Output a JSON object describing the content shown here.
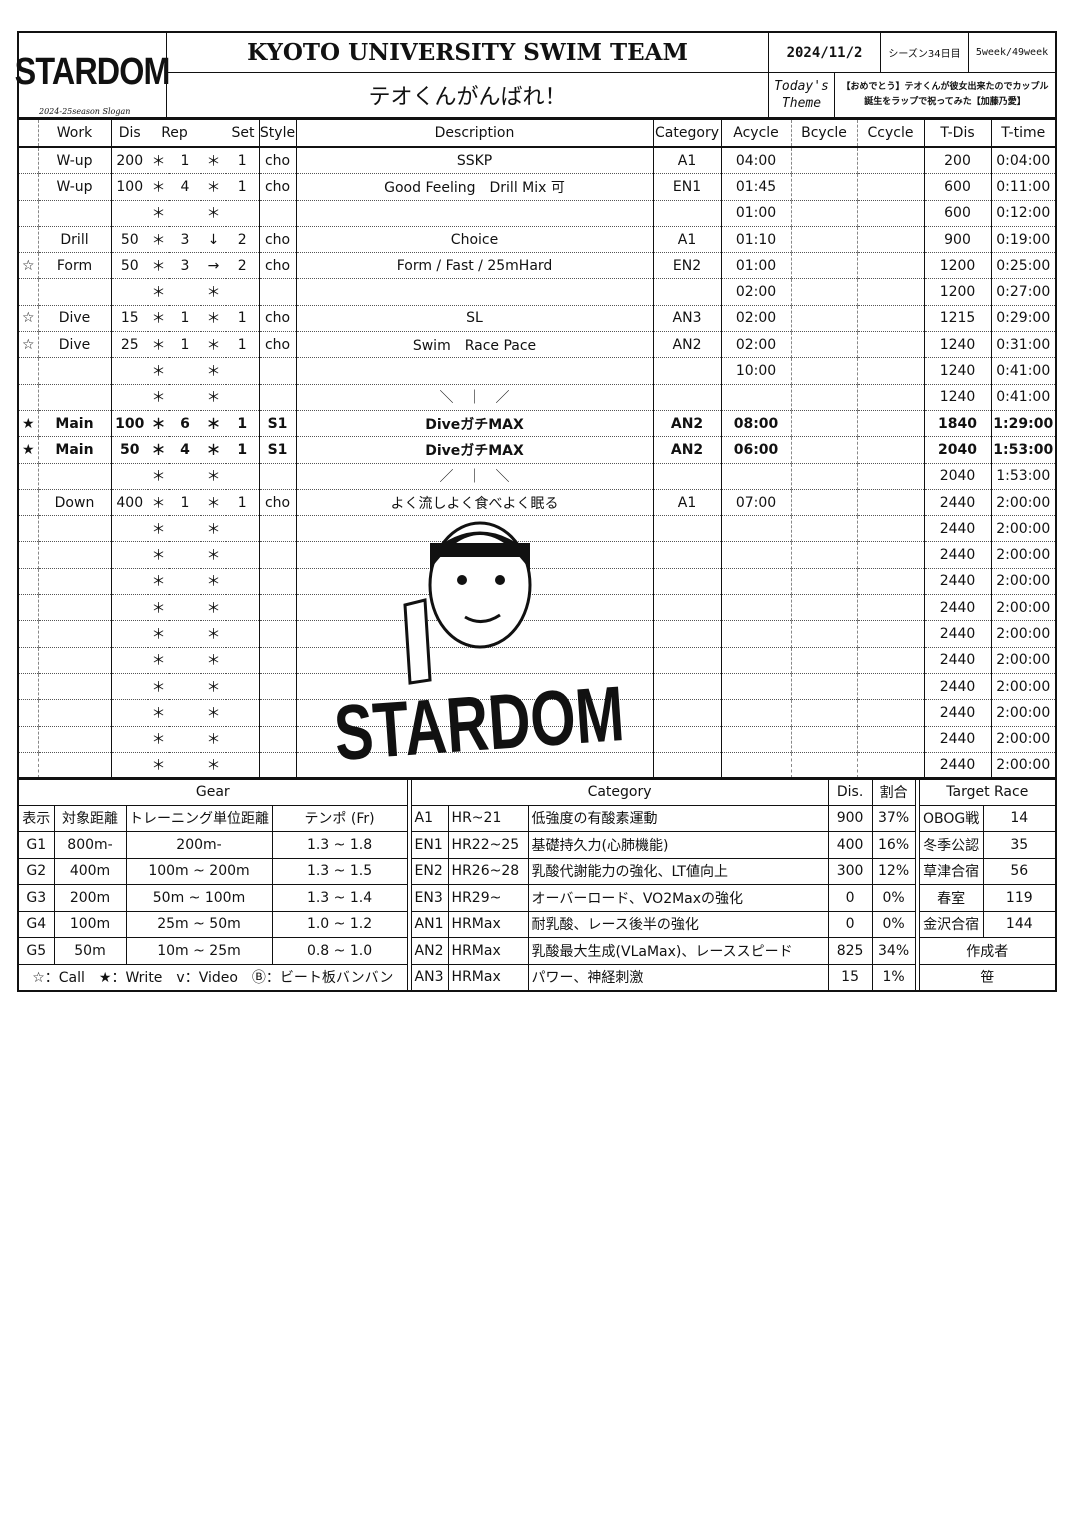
{
  "header": {
    "logo": "STARDOM",
    "slogan_label": "2024-25season Slogan",
    "team": "KYOTO UNIVERSITY SWIM TEAM",
    "date": "2024/11/2",
    "season_day": "シーズン34日目",
    "week": "5week/49week",
    "slogan": "テオくんがんばれ！",
    "theme_label": "Today's Theme",
    "theme": "【おめでとう】テオくんが彼女出来たのでカップル誕生をラップで祝ってみた【加藤乃愛】"
  },
  "columns": [
    "Work",
    "Dis",
    "Rep",
    "Set",
    "Style",
    "Description",
    "Category",
    "Acycle",
    "Bcycle",
    "Ccycle",
    "T-Dis",
    "T-time"
  ],
  "rows": [
    [
      "",
      "W-up",
      "200",
      "＊",
      "1",
      "＊",
      "1",
      "cho",
      "SSKP",
      "A1",
      "04:00",
      "",
      "",
      "200",
      "0:04:00",
      0
    ],
    [
      "",
      "W-up",
      "100",
      "＊",
      "4",
      "＊",
      "1",
      "cho",
      "Good Feeling　Drill Mix 可",
      "EN1",
      "01:45",
      "",
      "",
      "600",
      "0:11:00",
      0
    ],
    [
      "",
      "",
      "",
      "＊",
      "",
      "＊",
      "",
      "",
      "",
      "",
      "01:00",
      "",
      "",
      "600",
      "0:12:00",
      0
    ],
    [
      "",
      "Drill",
      "50",
      "＊",
      "3",
      "↓",
      "2",
      "cho",
      "Choice",
      "A1",
      "01:10",
      "",
      "",
      "900",
      "0:19:00",
      0
    ],
    [
      "☆",
      "Form",
      "50",
      "＊",
      "3",
      "→",
      "2",
      "cho",
      "Form / Fast / 25mHard",
      "EN2",
      "01:00",
      "",
      "",
      "1200",
      "0:25:00",
      0
    ],
    [
      "",
      "",
      "",
      "＊",
      "",
      "＊",
      "",
      "",
      "",
      "",
      "02:00",
      "",
      "",
      "1200",
      "0:27:00",
      0
    ],
    [
      "☆",
      "Dive",
      "15",
      "＊",
      "1",
      "＊",
      "1",
      "cho",
      "SL",
      "AN3",
      "02:00",
      "",
      "",
      "1215",
      "0:29:00",
      0
    ],
    [
      "☆",
      "Dive",
      "25",
      "＊",
      "1",
      "＊",
      "1",
      "cho",
      "Swim　Race Pace",
      "AN2",
      "02:00",
      "",
      "",
      "1240",
      "0:31:00",
      0
    ],
    [
      "",
      "",
      "",
      "＊",
      "",
      "＊",
      "",
      "",
      "",
      "",
      "10:00",
      "",
      "",
      "1240",
      "0:41:00",
      0
    ],
    [
      "",
      "",
      "",
      "＊",
      "",
      "＊",
      "",
      "",
      "＼　｜　／",
      "",
      "",
      "",
      "",
      "1240",
      "0:41:00",
      0
    ],
    [
      "★",
      "Main",
      "100",
      "＊",
      "6",
      "＊",
      "1",
      "S1",
      "DiveガチMAX",
      "AN2",
      "08:00",
      "",
      "",
      "1840",
      "1:29:00",
      1
    ],
    [
      "★",
      "Main",
      "50",
      "＊",
      "4",
      "＊",
      "1",
      "S1",
      "DiveガチMAX",
      "AN2",
      "06:00",
      "",
      "",
      "2040",
      "1:53:00",
      1
    ],
    [
      "",
      "",
      "",
      "＊",
      "",
      "＊",
      "",
      "",
      "／　｜　＼",
      "",
      "",
      "",
      "",
      "2040",
      "1:53:00",
      0
    ],
    [
      "",
      "Down",
      "400",
      "＊",
      "1",
      "＊",
      "1",
      "cho",
      "よく流しよく食べよく眠る",
      "A1",
      "07:00",
      "",
      "",
      "2440",
      "2:00:00",
      0
    ],
    [
      "",
      "",
      "",
      "＊",
      "",
      "＊",
      "",
      "",
      "",
      "",
      "",
      "",
      "",
      "2440",
      "2:00:00",
      0
    ],
    [
      "",
      "",
      "",
      "＊",
      "",
      "＊",
      "",
      "",
      "",
      "",
      "",
      "",
      "",
      "2440",
      "2:00:00",
      0
    ],
    [
      "",
      "",
      "",
      "＊",
      "",
      "＊",
      "",
      "",
      "",
      "",
      "",
      "",
      "",
      "2440",
      "2:00:00",
      0
    ],
    [
      "",
      "",
      "",
      "＊",
      "",
      "＊",
      "",
      "",
      "",
      "",
      "",
      "",
      "",
      "2440",
      "2:00:00",
      0
    ],
    [
      "",
      "",
      "",
      "＊",
      "",
      "＊",
      "",
      "",
      "",
      "",
      "",
      "",
      "",
      "2440",
      "2:00:00",
      0
    ],
    [
      "",
      "",
      "",
      "＊",
      "",
      "＊",
      "",
      "",
      "",
      "",
      "",
      "",
      "",
      "2440",
      "2:00:00",
      0
    ],
    [
      "",
      "",
      "",
      "＊",
      "",
      "＊",
      "",
      "",
      "",
      "",
      "",
      "",
      "",
      "2440",
      "2:00:00",
      0
    ],
    [
      "",
      "",
      "",
      "＊",
      "",
      "＊",
      "",
      "",
      "",
      "",
      "",
      "",
      "",
      "2440",
      "2:00:00",
      0
    ],
    [
      "",
      "",
      "",
      "＊",
      "",
      "＊",
      "",
      "",
      "",
      "",
      "",
      "",
      "",
      "2440",
      "2:00:00",
      0
    ],
    [
      "",
      "",
      "",
      "＊",
      "",
      "＊",
      "",
      "",
      "",
      "",
      "",
      "",
      "",
      "2440",
      "2:00:00",
      0
    ]
  ],
  "photo": {
    "caption_logo": "STARDOM"
  },
  "gear": {
    "title": "Gear",
    "headers": [
      "表示",
      "対象距離",
      "トレーニング単位距離",
      "テンポ (Fr)"
    ],
    "rows": [
      [
        "G1",
        "800m-",
        "200m-",
        "1.3 ~ 1.8"
      ],
      [
        "G2",
        "400m",
        "100m ~ 200m",
        "1.3 ~ 1.5"
      ],
      [
        "G3",
        "200m",
        "50m ~ 100m",
        "1.3 ~ 1.4"
      ],
      [
        "G4",
        "100m",
        "25m ~ 50m",
        "1.0 ~ 1.2"
      ],
      [
        "G5",
        "50m",
        "10m ~ 25m",
        "0.8 ~ 1.0"
      ]
    ],
    "legend": "☆：Call　★：Write　v：Video　Ⓑ：ビート板バンバン"
  },
  "category": {
    "title": "Category",
    "dis_label": "Dis.",
    "ratio_label": "割合",
    "rows": [
      [
        "A1",
        "HR~21",
        "低強度の有酸素運動",
        "900",
        "37%"
      ],
      [
        "EN1",
        "HR22~25",
        "基礎持久力(心肺機能)",
        "400",
        "16%"
      ],
      [
        "EN2",
        "HR26~28",
        "乳酸代謝能力の強化、LT値向上",
        "300",
        "12%"
      ],
      [
        "EN3",
        "HR29~",
        "オーバーロード、VO2Maxの強化",
        "0",
        "0%"
      ],
      [
        "AN1",
        "HRMax",
        "耐乳酸、レース後半の強化",
        "0",
        "0%"
      ],
      [
        "AN2",
        "HRMax",
        "乳酸最大生成(VLaMax)、レーススピード",
        "825",
        "34%"
      ],
      [
        "AN3",
        "HRMax",
        "パワー、神経刺激",
        "15",
        "1%"
      ]
    ]
  },
  "target": {
    "title": "Target Race",
    "rows": [
      [
        "OBOG戦",
        "14"
      ],
      [
        "冬季公認",
        "35"
      ],
      [
        "草津合宿",
        "56"
      ],
      [
        "春室",
        "119"
      ],
      [
        "金沢合宿",
        "144"
      ]
    ],
    "author_label": "作成者",
    "author": "笹"
  }
}
